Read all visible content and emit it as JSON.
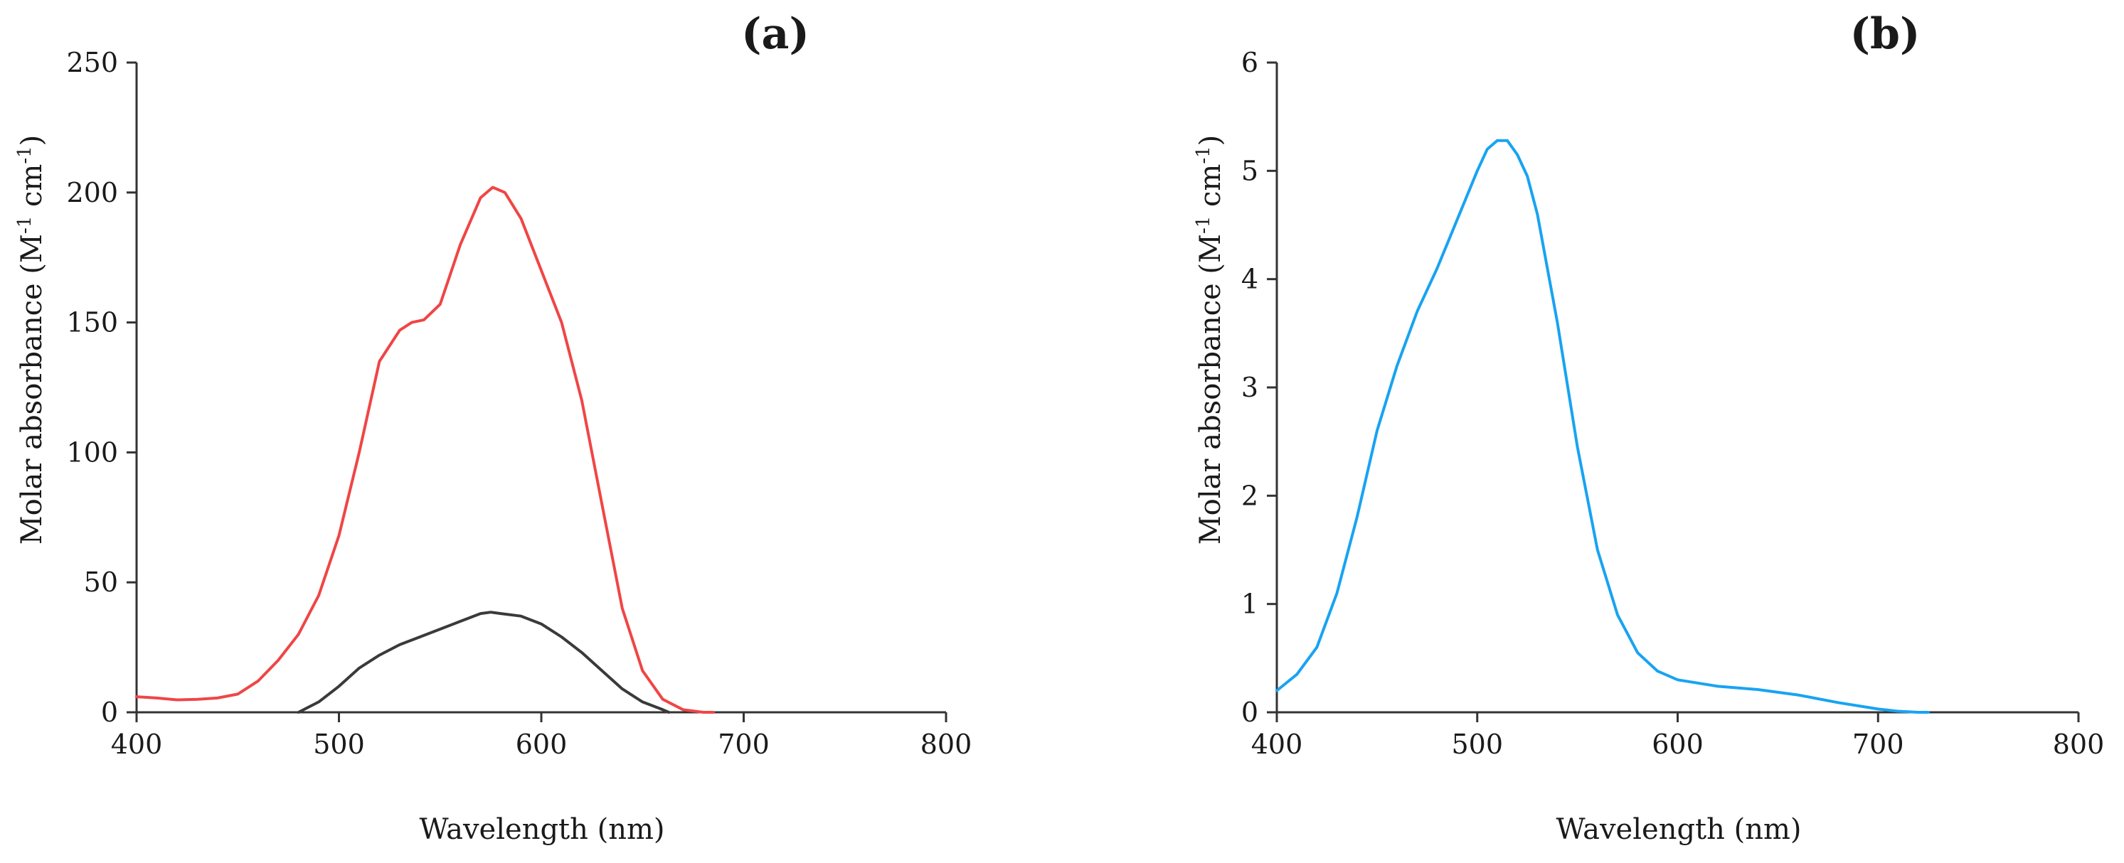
{
  "chart_data": [
    {
      "panel": "(a)",
      "type": "line",
      "title": "",
      "xlabel": "Wavelength (nm)",
      "ylabel": "Molar absorbance (M-1 cm-1)",
      "ylabel_parts": {
        "before": "Molar absorbance (M",
        "sup1": "-1",
        "middle": " cm",
        "sup2": "-1",
        "after": ")"
      },
      "xlim": [
        400,
        800
      ],
      "ylim": [
        0,
        250
      ],
      "xticks": [
        400,
        500,
        600,
        700,
        800
      ],
      "yticks": [
        0,
        50,
        100,
        150,
        200,
        250
      ],
      "grid": false,
      "series": [
        {
          "name": "red",
          "color": "#f04545",
          "x": [
            400,
            410,
            420,
            430,
            440,
            450,
            460,
            470,
            480,
            490,
            500,
            510,
            520,
            530,
            536,
            542,
            550,
            560,
            570,
            576,
            582,
            590,
            600,
            610,
            620,
            630,
            640,
            650,
            660,
            670,
            680,
            685
          ],
          "y": [
            6,
            5.5,
            4.8,
            5,
            5.5,
            7,
            12,
            20,
            30,
            45,
            68,
            100,
            135,
            147,
            150,
            151,
            157,
            180,
            198,
            202,
            200,
            190,
            170,
            150,
            120,
            80,
            40,
            16,
            5,
            1,
            0,
            0
          ]
        },
        {
          "name": "gray",
          "color": "#3a3a3a",
          "x": [
            480,
            490,
            500,
            510,
            520,
            530,
            540,
            550,
            560,
            570,
            575,
            580,
            590,
            600,
            610,
            620,
            630,
            640,
            650,
            660,
            663
          ],
          "y": [
            0,
            4,
            10,
            17,
            22,
            26,
            29,
            32,
            35,
            38,
            38.5,
            38,
            37,
            34,
            29,
            23,
            16,
            9,
            4,
            1,
            0
          ]
        }
      ]
    },
    {
      "panel": "(b)",
      "type": "line",
      "title": "",
      "xlabel": "Wavelength (nm)",
      "ylabel": "Molar absorbance (M-1 cm-1)",
      "ylabel_parts": {
        "before": "Molar absorbance (M",
        "sup1": "-1",
        "middle": " cm",
        "sup2": "-1",
        "after": ")"
      },
      "xlim": [
        400,
        800
      ],
      "ylim": [
        0,
        6
      ],
      "xticks": [
        400,
        500,
        600,
        700,
        800
      ],
      "yticks": [
        0,
        1,
        2,
        3,
        4,
        5,
        6
      ],
      "grid": false,
      "series": [
        {
          "name": "blue",
          "color": "#18a3f2",
          "x": [
            400,
            410,
            420,
            430,
            440,
            450,
            460,
            470,
            480,
            490,
            500,
            505,
            510,
            515,
            520,
            525,
            530,
            540,
            550,
            560,
            570,
            580,
            590,
            600,
            620,
            640,
            660,
            680,
            700,
            710,
            720,
            725
          ],
          "y": [
            0.2,
            0.35,
            0.6,
            1.1,
            1.8,
            2.6,
            3.2,
            3.7,
            4.1,
            4.55,
            5.0,
            5.2,
            5.28,
            5.28,
            5.15,
            4.95,
            4.6,
            3.6,
            2.45,
            1.5,
            0.9,
            0.55,
            0.38,
            0.3,
            0.24,
            0.21,
            0.16,
            0.09,
            0.03,
            0.01,
            0.0,
            0.0
          ]
        }
      ]
    }
  ]
}
